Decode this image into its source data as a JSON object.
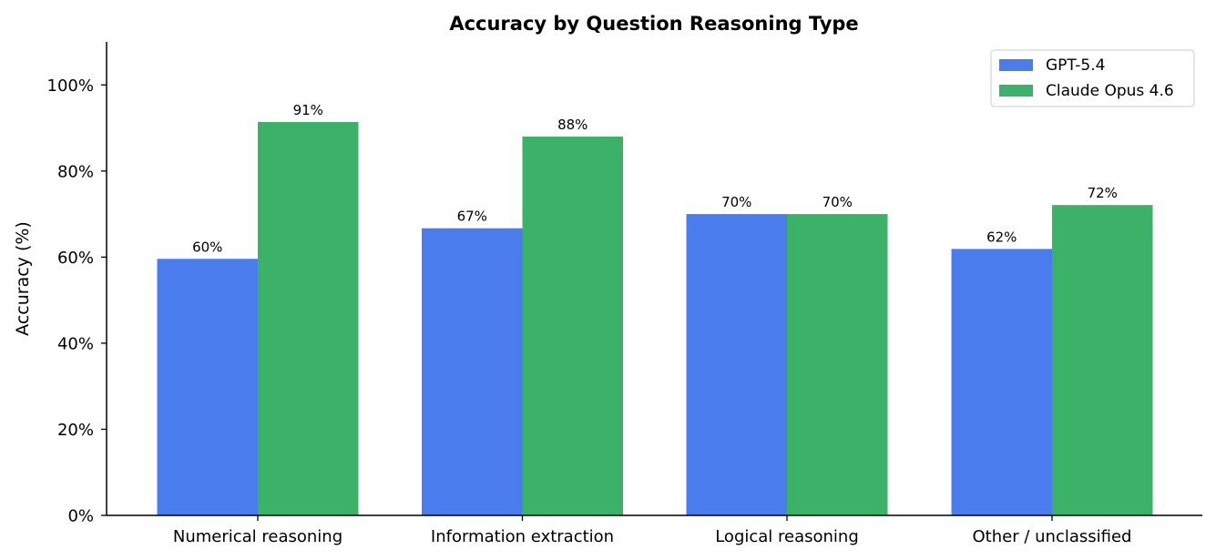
{
  "chart_data": {
    "type": "bar",
    "title": "Accuracy by Question Reasoning Type",
    "xlabel": "",
    "ylabel": "Accuracy (%)",
    "ylim": [
      0,
      110
    ],
    "yticks": [
      0,
      20,
      40,
      60,
      80,
      100
    ],
    "ytick_suffix": "%",
    "categories": [
      "Numerical reasoning",
      "Information extraction",
      "Logical reasoning",
      "Other / unclassified"
    ],
    "series": [
      {
        "name": "GPT-5.4",
        "color": "#4a7cee",
        "values": [
          59.6,
          66.7,
          70.0,
          61.9
        ],
        "labels": [
          "60%",
          "67%",
          "70%",
          "62%"
        ]
      },
      {
        "name": "Claude Opus 4.6",
        "color": "#3cb168",
        "values": [
          91.4,
          88.0,
          70.0,
          72.1
        ],
        "labels": [
          "91%",
          "88%",
          "70%",
          "72%"
        ]
      }
    ],
    "legend_position": "top-right",
    "grid": false
  }
}
